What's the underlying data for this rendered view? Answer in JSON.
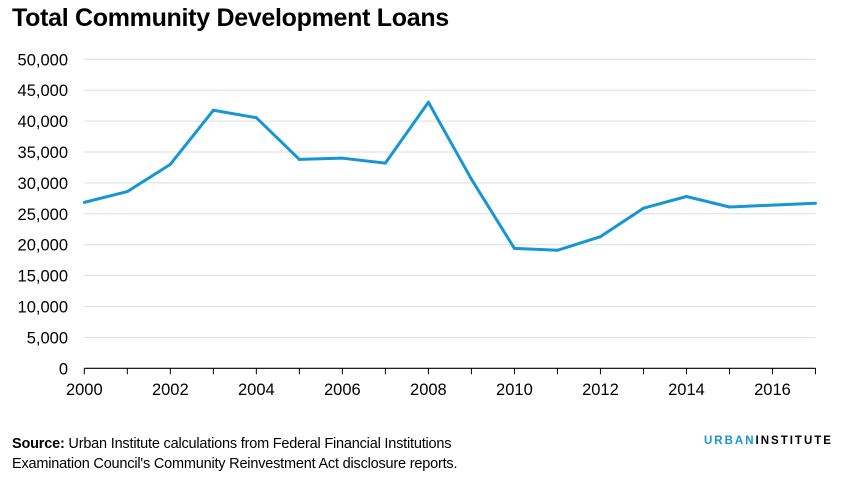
{
  "chart_data": {
    "type": "line",
    "title": "Total Community Development Loans",
    "xlabel": "",
    "ylabel": "",
    "x": [
      2000,
      2001,
      2002,
      2003,
      2004,
      2005,
      2006,
      2007,
      2008,
      2009,
      2010,
      2011,
      2012,
      2013,
      2014,
      2015,
      2016,
      2017
    ],
    "series": [
      {
        "name": "Total Community Development Loans",
        "values": [
          26850,
          28600,
          33000,
          41750,
          40550,
          33800,
          34000,
          33200,
          43050,
          30600,
          19400,
          19100,
          21300,
          25900,
          27800,
          26100,
          26400,
          26700
        ]
      }
    ],
    "xlim": [
      2000,
      2017
    ],
    "ylim": [
      0,
      50000
    ],
    "xticks": [
      2000,
      2002,
      2004,
      2006,
      2008,
      2010,
      2012,
      2014,
      2016
    ],
    "xtick_labels": [
      "2000",
      "2002",
      "2004",
      "2006",
      "2008",
      "2010",
      "2012",
      "2014",
      "2016"
    ],
    "yticks": [
      0,
      5000,
      10000,
      15000,
      20000,
      25000,
      30000,
      35000,
      40000,
      45000,
      50000
    ],
    "ytick_labels": [
      "0",
      "5,000",
      "10,000",
      "15,000",
      "20,000",
      "25,000",
      "30,000",
      "35,000",
      "40,000",
      "45,000",
      "50,000"
    ],
    "grid": true,
    "line_color": "#1696d2"
  },
  "footer": {
    "source_label": "Source:",
    "source_line1": " Urban Institute calculations from Federal Financial Institutions",
    "source_line2": "Examination Council's Community Reinvestment Act disclosure reports."
  },
  "logo": {
    "urban": "URBAN",
    "institute": "INSTITUTE"
  }
}
